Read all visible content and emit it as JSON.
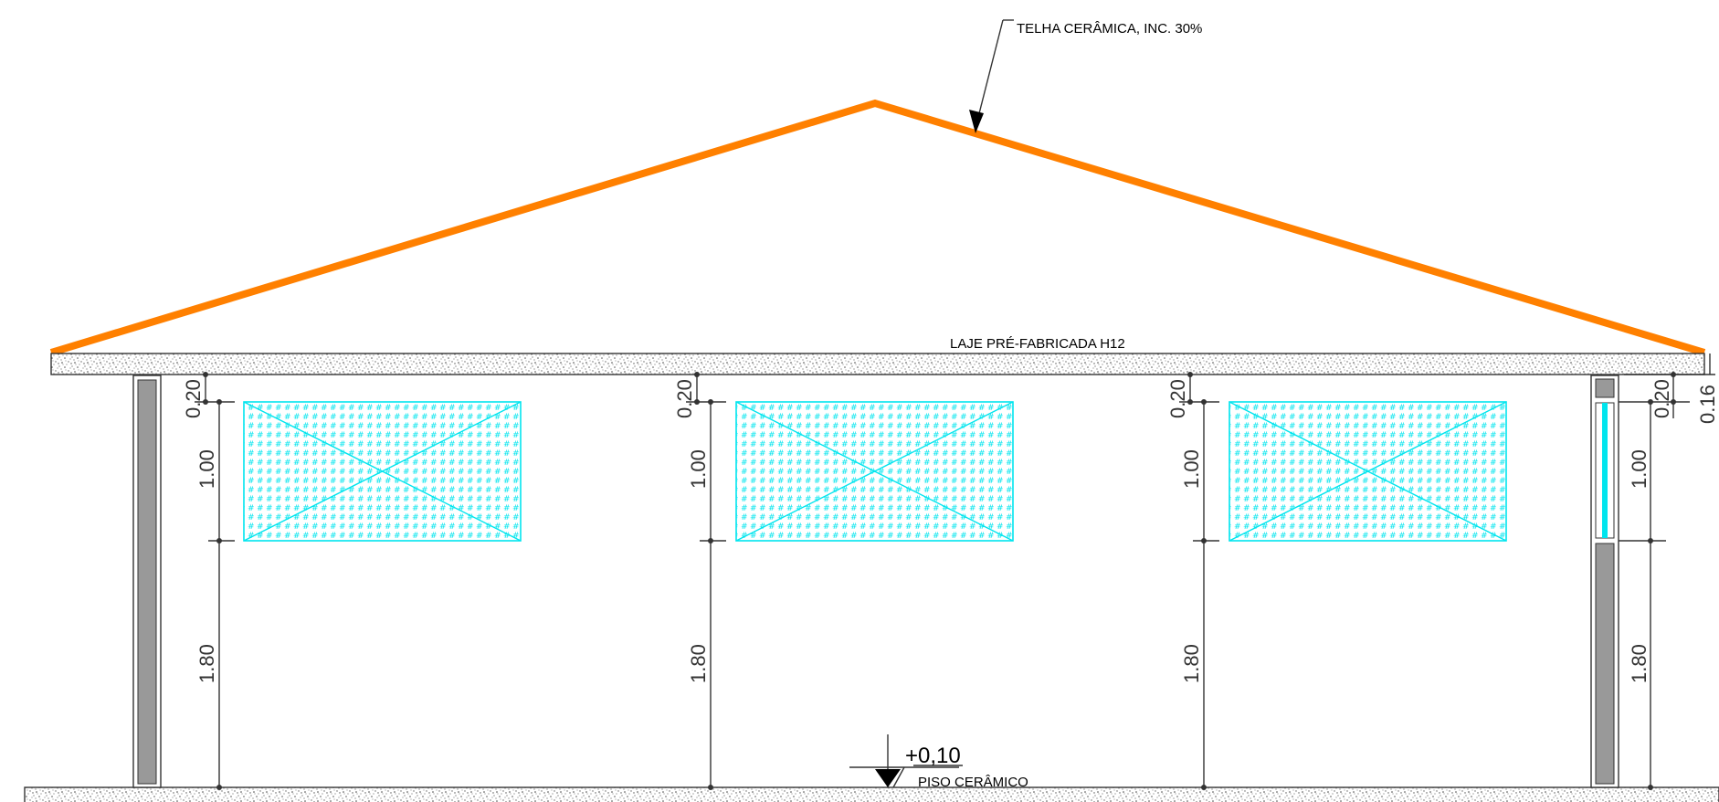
{
  "annotations": {
    "roof": "TELHA CERÂMICA, INC. 30%",
    "slab": "LAJE PRÉ-FABRICADA H12",
    "floor_level": "+0,10",
    "floor": "PISO CERÂMICO"
  },
  "dimensions": {
    "lintel": "0.20",
    "window_height": "1.00",
    "sill_height": "1.80",
    "right_top": "0.16"
  },
  "colors": {
    "roof": "#ff8000",
    "window": "#00e5ee",
    "wall_fill": "#999999",
    "concrete_dots": "#555555"
  }
}
